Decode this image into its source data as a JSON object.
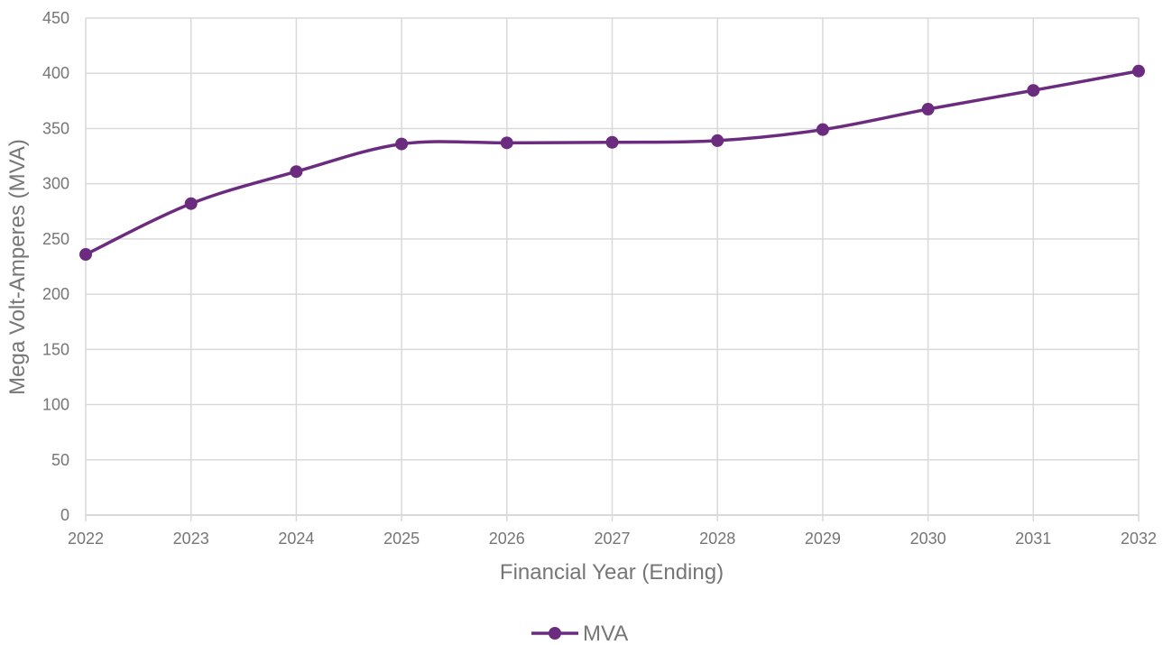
{
  "chart_data": {
    "type": "line",
    "title": "",
    "xlabel": "Financial Year (Ending)",
    "ylabel": "Mega Volt-Amperes (MVA)",
    "categories": [
      "2022",
      "2023",
      "2024",
      "2025",
      "2026",
      "2027",
      "2028",
      "2029",
      "2030",
      "2031",
      "2032"
    ],
    "series": [
      {
        "name": "MVA",
        "values": [
          236,
          282,
          311,
          336,
          337,
          337.5,
          339,
          349,
          367.5,
          384.5,
          402
        ]
      }
    ],
    "ylim": [
      0,
      450
    ],
    "yticks": [
      "0",
      "50",
      "100",
      "150",
      "200",
      "250",
      "300",
      "350",
      "400",
      "450"
    ],
    "grid": true,
    "smooth": true,
    "legend_position": "bottom",
    "colors": {
      "series": "#6b2c7f",
      "grid": "#d9d9d9",
      "text": "#767676"
    }
  }
}
